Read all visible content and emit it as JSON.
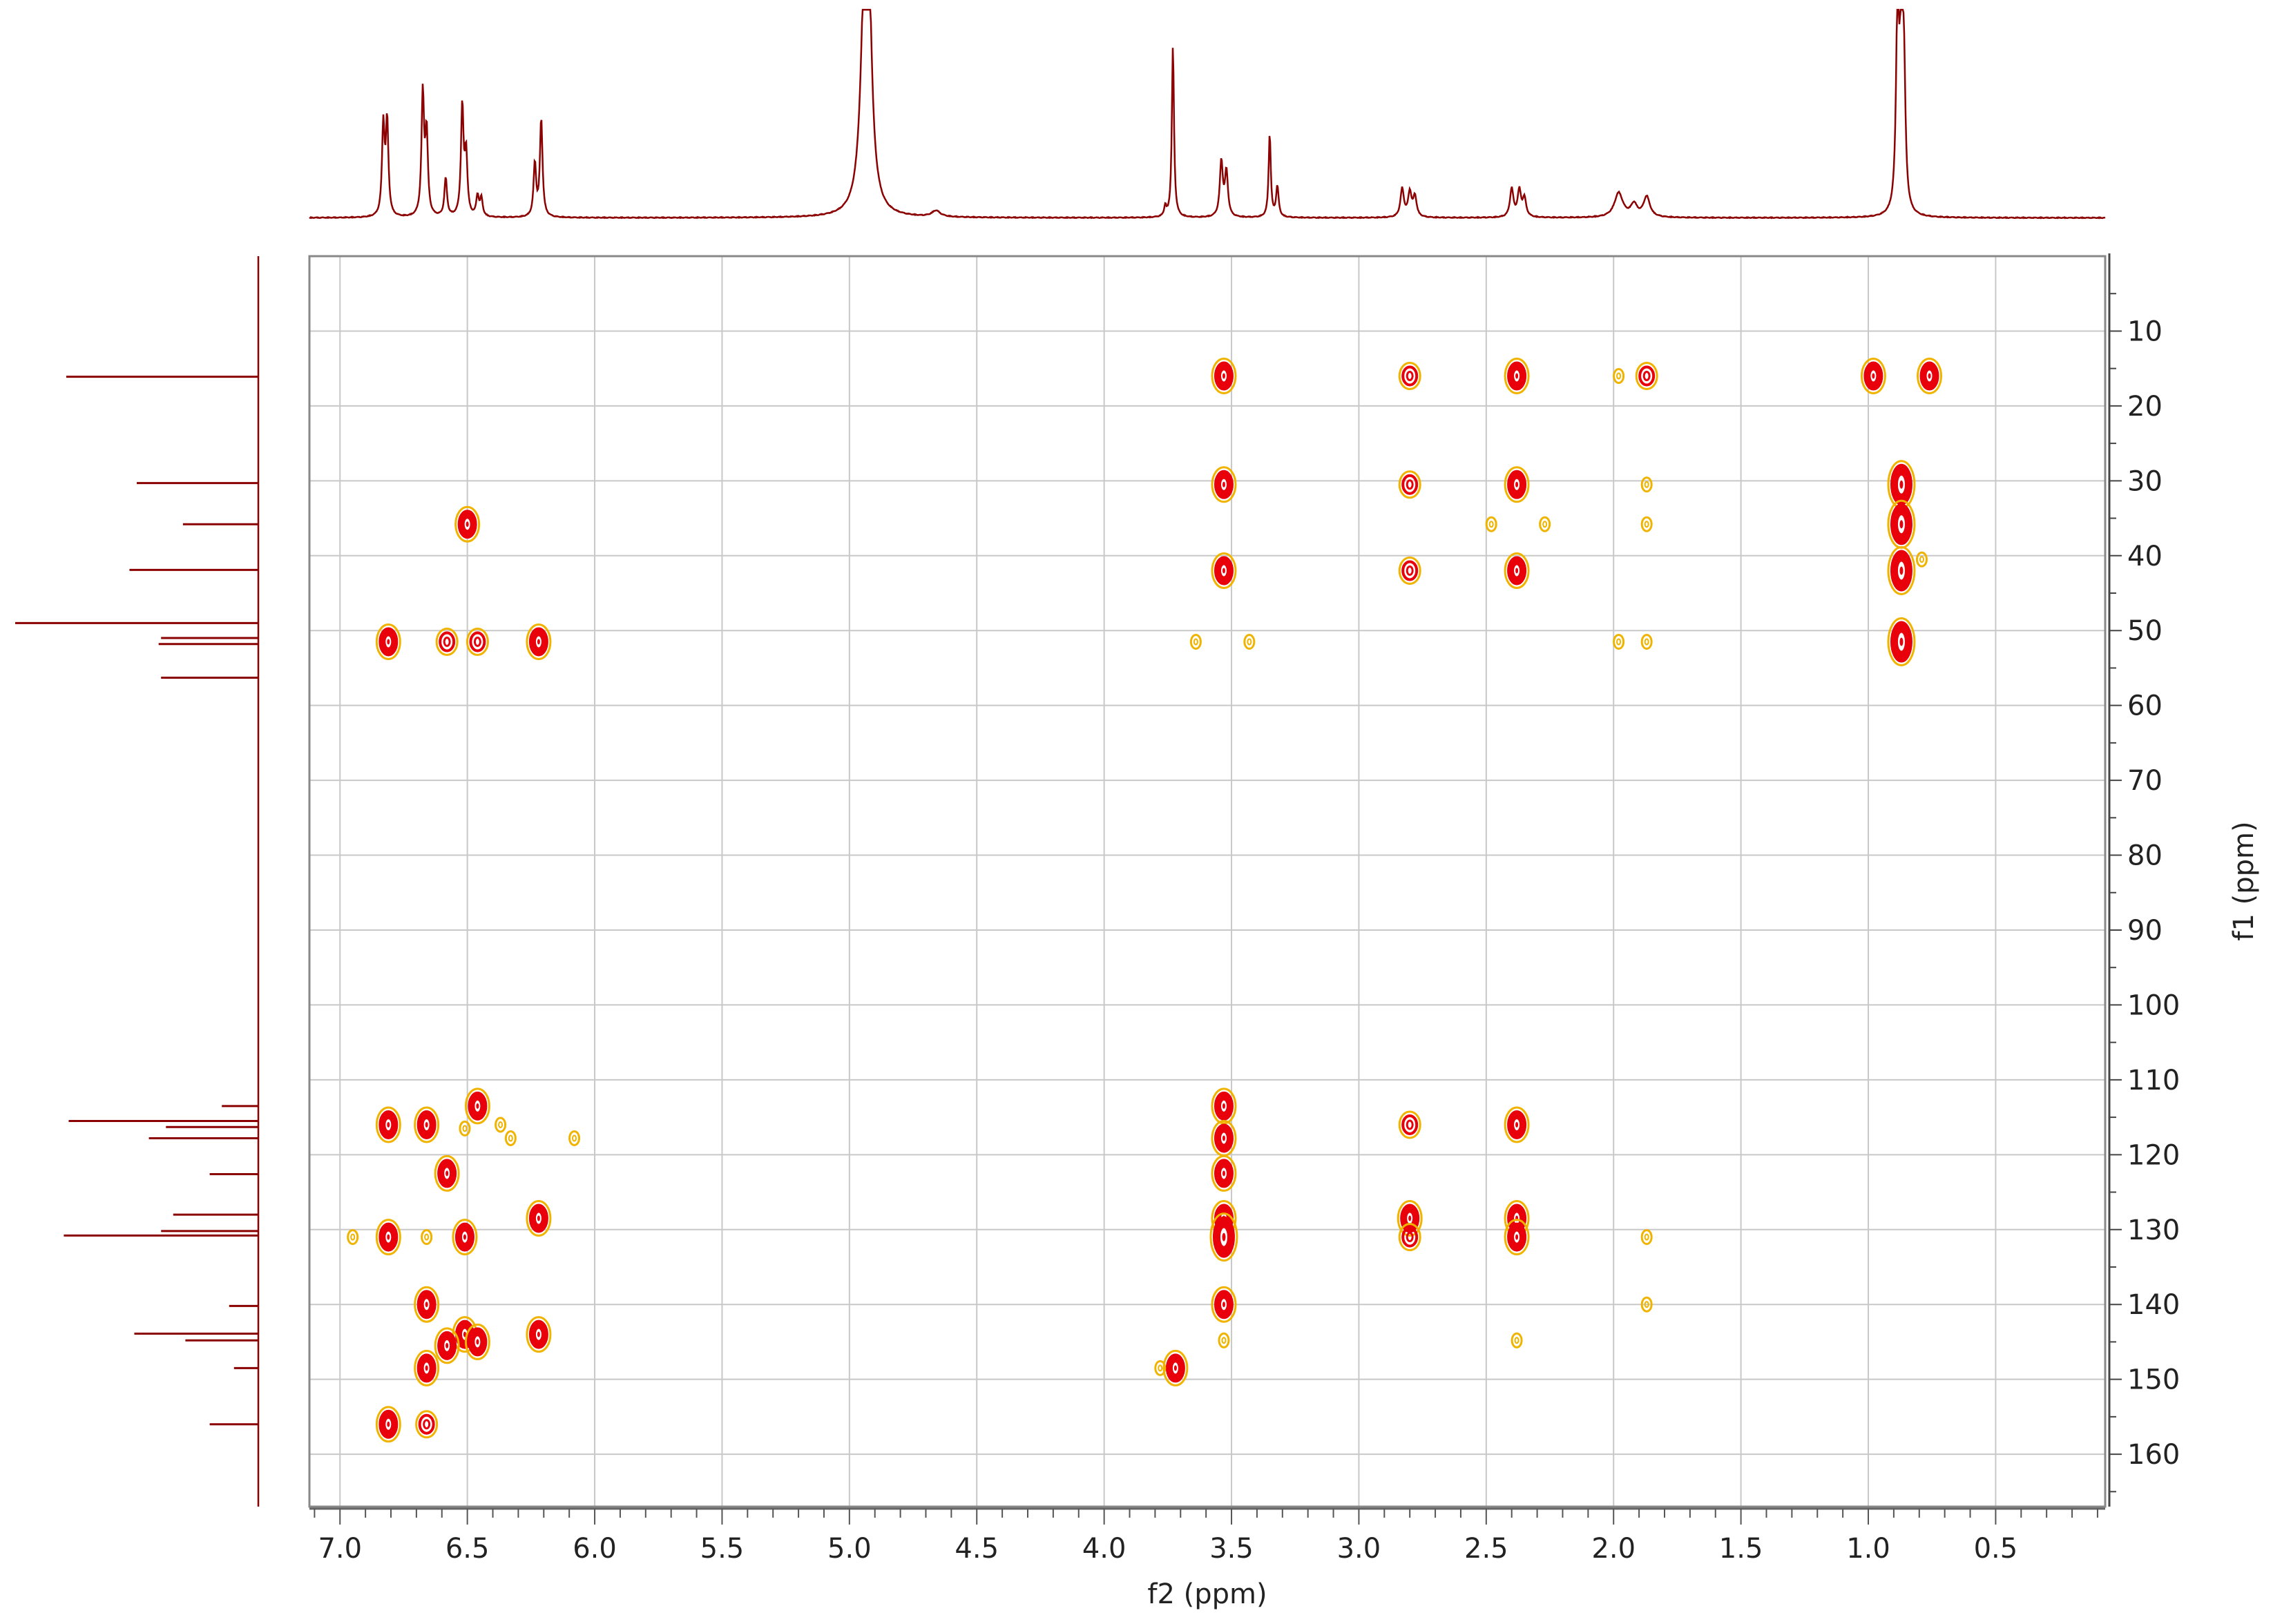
{
  "chart_data": {
    "type": "scatter",
    "subtype": "2D NMR HMBC contour plot with 1D projections",
    "title": "",
    "xlabel": "f2 (ppm)",
    "ylabel": "f1 (ppm)",
    "x_axis": {
      "range": [
        7.12,
        0.07
      ],
      "reversed": true,
      "ticks": [
        7.0,
        6.5,
        6.0,
        5.5,
        5.0,
        4.5,
        4.0,
        3.5,
        3.0,
        2.5,
        2.0,
        1.5,
        1.0,
        0.5
      ],
      "tick_labels": [
        "7.0",
        "6.5",
        "6.0",
        "5.5",
        "5.0",
        "4.5",
        "4.0",
        "3.5",
        "3.0",
        "2.5",
        "2.0",
        "1.5",
        "1.0",
        "0.5"
      ]
    },
    "y_axis": {
      "range": [
        0,
        167
      ],
      "reversed": true,
      "position": "right",
      "ticks": [
        10,
        20,
        30,
        40,
        50,
        60,
        70,
        80,
        90,
        100,
        110,
        120,
        130,
        140,
        150,
        160
      ],
      "tick_labels": [
        "10",
        "20",
        "30",
        "40",
        "50",
        "60",
        "70",
        "80",
        "90",
        "100",
        "110",
        "120",
        "130",
        "140",
        "150",
        "160"
      ]
    },
    "grid": true,
    "colors": {
      "projection": "#8b0000",
      "contour_strong": "#e8000b",
      "contour_weak": "#f0b400",
      "grid": "#c8c8c8",
      "frame": "#888888"
    },
    "cross_peaks": [
      {
        "x": 3.53,
        "y": 16.0,
        "i": 3
      },
      {
        "x": 2.8,
        "y": 16.0,
        "i": 2
      },
      {
        "x": 2.38,
        "y": 16.0,
        "i": 3
      },
      {
        "x": 1.98,
        "y": 16.0,
        "i": 1
      },
      {
        "x": 1.87,
        "y": 16.0,
        "i": 2
      },
      {
        "x": 0.98,
        "y": 16.0,
        "i": 3
      },
      {
        "x": 0.76,
        "y": 16.0,
        "i": 3
      },
      {
        "x": 3.53,
        "y": 30.5,
        "i": 3
      },
      {
        "x": 2.8,
        "y": 30.5,
        "i": 2
      },
      {
        "x": 2.38,
        "y": 30.5,
        "i": 3
      },
      {
        "x": 1.87,
        "y": 30.5,
        "i": 1
      },
      {
        "x": 0.87,
        "y": 30.5,
        "i": 4
      },
      {
        "x": 6.5,
        "y": 35.8,
        "i": 3
      },
      {
        "x": 2.48,
        "y": 35.8,
        "i": 1
      },
      {
        "x": 2.27,
        "y": 35.8,
        "i": 1
      },
      {
        "x": 1.87,
        "y": 35.8,
        "i": 1
      },
      {
        "x": 0.87,
        "y": 35.8,
        "i": 4
      },
      {
        "x": 3.53,
        "y": 42.0,
        "i": 3
      },
      {
        "x": 2.8,
        "y": 42.0,
        "i": 2
      },
      {
        "x": 2.38,
        "y": 42.0,
        "i": 3
      },
      {
        "x": 0.87,
        "y": 42.0,
        "i": 4
      },
      {
        "x": 0.79,
        "y": 40.5,
        "i": 1
      },
      {
        "x": 6.81,
        "y": 51.5,
        "i": 3
      },
      {
        "x": 6.58,
        "y": 51.5,
        "i": 2
      },
      {
        "x": 6.46,
        "y": 51.5,
        "i": 2
      },
      {
        "x": 6.22,
        "y": 51.5,
        "i": 3
      },
      {
        "x": 3.64,
        "y": 51.5,
        "i": 1
      },
      {
        "x": 3.43,
        "y": 51.5,
        "i": 1
      },
      {
        "x": 1.98,
        "y": 51.5,
        "i": 1
      },
      {
        "x": 1.87,
        "y": 51.5,
        "i": 1
      },
      {
        "x": 0.87,
        "y": 51.5,
        "i": 4
      },
      {
        "x": 6.46,
        "y": 113.5,
        "i": 3
      },
      {
        "x": 3.53,
        "y": 113.5,
        "i": 3
      },
      {
        "x": 6.81,
        "y": 116.0,
        "i": 3
      },
      {
        "x": 6.66,
        "y": 116.0,
        "i": 3
      },
      {
        "x": 6.51,
        "y": 116.5,
        "i": 1
      },
      {
        "x": 6.37,
        "y": 116.0,
        "i": 1
      },
      {
        "x": 6.33,
        "y": 117.8,
        "i": 1
      },
      {
        "x": 6.08,
        "y": 117.8,
        "i": 1
      },
      {
        "x": 2.8,
        "y": 116.0,
        "i": 2
      },
      {
        "x": 2.38,
        "y": 116.0,
        "i": 3
      },
      {
        "x": 3.53,
        "y": 117.8,
        "i": 3
      },
      {
        "x": 6.58,
        "y": 122.5,
        "i": 3
      },
      {
        "x": 3.53,
        "y": 122.5,
        "i": 3
      },
      {
        "x": 6.22,
        "y": 128.5,
        "i": 3
      },
      {
        "x": 3.53,
        "y": 128.5,
        "i": 3
      },
      {
        "x": 2.8,
        "y": 128.5,
        "i": 3
      },
      {
        "x": 2.38,
        "y": 128.5,
        "i": 3
      },
      {
        "x": 6.95,
        "y": 131.0,
        "i": 1
      },
      {
        "x": 6.81,
        "y": 131.0,
        "i": 3
      },
      {
        "x": 6.66,
        "y": 131.0,
        "i": 1
      },
      {
        "x": 6.51,
        "y": 131.0,
        "i": 3
      },
      {
        "x": 3.53,
        "y": 131.0,
        "i": 4
      },
      {
        "x": 2.8,
        "y": 131.0,
        "i": 2
      },
      {
        "x": 2.38,
        "y": 131.0,
        "i": 3
      },
      {
        "x": 1.87,
        "y": 131.0,
        "i": 1
      },
      {
        "x": 6.66,
        "y": 140.0,
        "i": 3
      },
      {
        "x": 3.53,
        "y": 140.0,
        "i": 3
      },
      {
        "x": 1.87,
        "y": 140.0,
        "i": 1
      },
      {
        "x": 6.51,
        "y": 144.0,
        "i": 3
      },
      {
        "x": 6.58,
        "y": 145.5,
        "i": 3
      },
      {
        "x": 6.46,
        "y": 145.0,
        "i": 3
      },
      {
        "x": 6.22,
        "y": 144.0,
        "i": 3
      },
      {
        "x": 3.53,
        "y": 144.8,
        "i": 1
      },
      {
        "x": 2.38,
        "y": 144.8,
        "i": 1
      },
      {
        "x": 6.66,
        "y": 148.5,
        "i": 3
      },
      {
        "x": 3.72,
        "y": 148.5,
        "i": 3
      },
      {
        "x": 3.78,
        "y": 148.5,
        "i": 1
      },
      {
        "x": 6.81,
        "y": 156.0,
        "i": 3
      },
      {
        "x": 6.66,
        "y": 156.0,
        "i": 2
      }
    ],
    "projection_f2": [
      {
        "ppm": 6.83,
        "h": 0.44,
        "w": 0.006
      },
      {
        "ppm": 6.815,
        "h": 0.46,
        "w": 0.006
      },
      {
        "ppm": 6.675,
        "h": 0.6,
        "w": 0.006
      },
      {
        "ppm": 6.66,
        "h": 0.4,
        "w": 0.006
      },
      {
        "ppm": 6.585,
        "h": 0.19,
        "w": 0.006
      },
      {
        "ppm": 6.52,
        "h": 0.54,
        "w": 0.006
      },
      {
        "ppm": 6.505,
        "h": 0.3,
        "w": 0.006
      },
      {
        "ppm": 6.46,
        "h": 0.1,
        "w": 0.006
      },
      {
        "ppm": 6.445,
        "h": 0.09,
        "w": 0.006
      },
      {
        "ppm": 6.235,
        "h": 0.26,
        "w": 0.006
      },
      {
        "ppm": 6.21,
        "h": 0.48,
        "w": 0.006
      },
      {
        "ppm": 4.94,
        "h": 1.0,
        "w": 0.018
      },
      {
        "ppm": 4.925,
        "h": 0.85,
        "w": 0.015
      },
      {
        "ppm": 4.66,
        "h": 0.03,
        "w": 0.02
      },
      {
        "ppm": 3.73,
        "h": 0.84,
        "w": 0.005
      },
      {
        "ppm": 3.76,
        "h": 0.05,
        "w": 0.005
      },
      {
        "ppm": 3.54,
        "h": 0.27,
        "w": 0.007
      },
      {
        "ppm": 3.52,
        "h": 0.22,
        "w": 0.007
      },
      {
        "ppm": 3.35,
        "h": 0.41,
        "w": 0.005
      },
      {
        "ppm": 3.32,
        "h": 0.15,
        "w": 0.006
      },
      {
        "ppm": 2.83,
        "h": 0.14,
        "w": 0.008
      },
      {
        "ppm": 2.8,
        "h": 0.12,
        "w": 0.008
      },
      {
        "ppm": 2.78,
        "h": 0.1,
        "w": 0.008
      },
      {
        "ppm": 2.4,
        "h": 0.14,
        "w": 0.008
      },
      {
        "ppm": 2.37,
        "h": 0.13,
        "w": 0.008
      },
      {
        "ppm": 2.35,
        "h": 0.09,
        "w": 0.008
      },
      {
        "ppm": 1.98,
        "h": 0.12,
        "w": 0.02
      },
      {
        "ppm": 1.92,
        "h": 0.06,
        "w": 0.015
      },
      {
        "ppm": 1.87,
        "h": 0.1,
        "w": 0.015
      },
      {
        "ppm": 0.885,
        "h": 1.0,
        "w": 0.007
      },
      {
        "ppm": 0.87,
        "h": 0.85,
        "w": 0.007
      },
      {
        "ppm": 0.86,
        "h": 0.6,
        "w": 0.007
      }
    ],
    "projection_f1": [
      {
        "ppm": 16.1,
        "h": 0.79
      },
      {
        "ppm": 30.3,
        "h": 0.5
      },
      {
        "ppm": 35.8,
        "h": 0.31
      },
      {
        "ppm": 41.9,
        "h": 0.53
      },
      {
        "ppm": 49.0,
        "h": 1.0
      },
      {
        "ppm": 51.0,
        "h": 0.4
      },
      {
        "ppm": 51.8,
        "h": 0.41
      },
      {
        "ppm": 56.3,
        "h": 0.4
      },
      {
        "ppm": 113.5,
        "h": 0.15
      },
      {
        "ppm": 115.5,
        "h": 0.78
      },
      {
        "ppm": 116.3,
        "h": 0.38
      },
      {
        "ppm": 117.8,
        "h": 0.45
      },
      {
        "ppm": 122.6,
        "h": 0.2
      },
      {
        "ppm": 128.0,
        "h": 0.35
      },
      {
        "ppm": 130.2,
        "h": 0.4
      },
      {
        "ppm": 130.8,
        "h": 0.8
      },
      {
        "ppm": 140.2,
        "h": 0.12
      },
      {
        "ppm": 143.9,
        "h": 0.51
      },
      {
        "ppm": 144.8,
        "h": 0.3
      },
      {
        "ppm": 148.5,
        "h": 0.1
      },
      {
        "ppm": 156.0,
        "h": 0.2
      }
    ]
  }
}
